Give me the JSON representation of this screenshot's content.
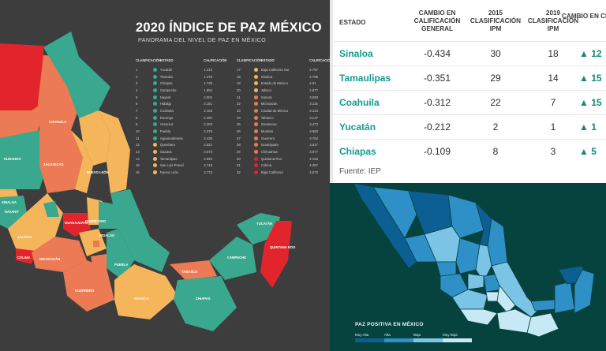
{
  "left": {
    "title": "2020 ÍNDICE DE PAZ MÉXICO",
    "subtitle": "PANORAMA DEL NIVEL DE PAZ EN MÉXICO",
    "table_headers": {
      "rank": "CLASIFICACIÓN",
      "state": "ESTADO",
      "score": "CALIFICACIÓN"
    },
    "colors": {
      "teal": "#3aa88e",
      "orange": "#ec7a54",
      "yellow": "#f5b55a",
      "red": "#e2252c"
    },
    "ranking_col1": [
      {
        "rank": "1",
        "state": "Yucatán",
        "score": "1.212",
        "color": "#3aa88e"
      },
      {
        "rank": "2",
        "state": "Tlaxcala",
        "score": "1.378",
        "color": "#3aa88e"
      },
      {
        "rank": "3",
        "state": "Chiapas",
        "score": "1.735",
        "color": "#3aa88e"
      },
      {
        "rank": "4",
        "state": "Campeche",
        "score": "1.854",
        "color": "#3aa88e"
      },
      {
        "rank": "5",
        "state": "Nayarit",
        "score": "2.001",
        "color": "#3aa88e"
      },
      {
        "rank": "6",
        "state": "Hidalgo",
        "score": "2.151",
        "color": "#3aa88e"
      },
      {
        "rank": "7",
        "state": "Coahuila",
        "score": "2.163",
        "color": "#3aa88e"
      },
      {
        "rank": "8",
        "state": "Durango",
        "score": "2.281",
        "color": "#3aa88e"
      },
      {
        "rank": "9",
        "state": "Veracruz",
        "score": "2.283",
        "color": "#3aa88e"
      },
      {
        "rank": "10",
        "state": "Puebla",
        "score": "2.376",
        "color": "#3aa88e"
      },
      {
        "rank": "11",
        "state": "Aguascalientes",
        "score": "2.436",
        "color": "#3aa88e"
      },
      {
        "rank": "12",
        "state": "Querétaro",
        "score": "2.521",
        "color": "#f5b55a"
      },
      {
        "rank": "13",
        "state": "Oaxaca",
        "score": "2.572",
        "color": "#f5b55a"
      },
      {
        "rank": "14",
        "state": "Tamaulipas",
        "score": "2.594",
        "color": "#f5b55a"
      },
      {
        "rank": "15",
        "state": "San Luis Potosí",
        "score": "2.718",
        "color": "#f5b55a"
      },
      {
        "rank": "16",
        "state": "Nuevo León",
        "score": "2.773",
        "color": "#f5b55a"
      }
    ],
    "ranking_col2": [
      {
        "rank": "17",
        "state": "Baja California Sur",
        "score": "2.797",
        "color": "#f5b55a"
      },
      {
        "rank": "18",
        "state": "Sinaloa",
        "score": "2.798",
        "color": "#f5b55a"
      },
      {
        "rank": "19",
        "state": "Estado de México",
        "score": "2.91",
        "color": "#f5b55a"
      },
      {
        "rank": "20",
        "state": "Jalisco",
        "score": "2.977",
        "color": "#f5b55a"
      },
      {
        "rank": "21",
        "state": "Sonora",
        "score": "3.093",
        "color": "#ec7a54"
      },
      {
        "rank": "22",
        "state": "Michoacán",
        "score": "3.116",
        "color": "#ec7a54"
      },
      {
        "rank": "23",
        "state": "Ciudad de México",
        "score": "3.124",
        "color": "#ec7a54"
      },
      {
        "rank": "24",
        "state": "Tabasco",
        "score": "3.137",
        "color": "#ec7a54"
      },
      {
        "rank": "25",
        "state": "Zacatecas",
        "score": "3.473",
        "color": "#ec7a54"
      },
      {
        "rank": "26",
        "state": "Morelos",
        "score": "3.583",
        "color": "#ec7a54"
      },
      {
        "rank": "27",
        "state": "Guerrero",
        "score": "3.762",
        "color": "#ec7a54"
      },
      {
        "rank": "28",
        "state": "Guanajuato",
        "score": "3.817",
        "color": "#ec7a54"
      },
      {
        "rank": "29",
        "state": "Chihuahua",
        "score": "3.877",
        "color": "#ec7a54"
      },
      {
        "rank": "30",
        "state": "Quintana Roo",
        "score": "4.165",
        "color": "#e2252c"
      },
      {
        "rank": "31",
        "state": "Colima",
        "score": "4.357",
        "color": "#e2252c"
      },
      {
        "rank": "32",
        "state": "Baja California",
        "score": "4.572",
        "color": "#e2252c"
      }
    ],
    "map_labels": {
      "coahuila": "COAHUILA",
      "nuevo_leon": "NUEVO LEÓN",
      "durango": "DURANGO",
      "zacatecas": "ZACATECAS",
      "sinaloa": "SINALOA",
      "nayarit": "NAYARIT",
      "jalisco": "JALISCO",
      "colima": "COLIMA",
      "michoacan": "MICHOACÁN",
      "guanajuato": "GUANAJUATO",
      "queretaro": "QUERÉTARO",
      "hidalgo": "HIDALGO",
      "puebla": "PUEBLA",
      "guerrero": "GUERRERO",
      "oaxaca": "OAXACA",
      "tabasco": "TABASCO",
      "chiapas": "CHIAPAS",
      "campeche": "CAMPECHE",
      "yucatan": "YUCATÁN",
      "quintana_roo": "QUINTANA ROO"
    }
  },
  "table": {
    "headers": {
      "estado": "ESTADO",
      "cambio": "CAMBIO EN CALIFICACIÓN GENERAL",
      "clasif2015": "2015 CLASIFICACIÓN IPM",
      "clasif2019": "2019 CLASIFICACIÓN IPM",
      "cambio_clasif": "CAMBIO EN CLASIFICACIÓN"
    },
    "rows": [
      {
        "estado": "Sinaloa",
        "cambio": "-0.434",
        "c2015": "30",
        "c2019": "18",
        "delta": "12"
      },
      {
        "estado": "Tamaulipas",
        "cambio": "-0.351",
        "c2015": "29",
        "c2019": "14",
        "delta": "15"
      },
      {
        "estado": "Coahuila",
        "cambio": "-0.312",
        "c2015": "22",
        "c2019": "7",
        "delta": "15"
      },
      {
        "estado": "Yucatán",
        "cambio": "-0.212",
        "c2015": "2",
        "c2019": "1",
        "delta": "1"
      },
      {
        "estado": "Chiapas",
        "cambio": "-0.109",
        "c2015": "8",
        "c2019": "3",
        "delta": "5"
      }
    ],
    "arrow_symbol": "🡅",
    "source": "Fuente: IEP"
  },
  "positive_map": {
    "legend_title": "PAZ POSITIVA EN MÉXICO",
    "legend": [
      {
        "label": "Muy Alta",
        "color": "#0c5f93"
      },
      {
        "label": "Alta",
        "color": "#2f8fc7"
      },
      {
        "label": "Baja",
        "color": "#7cc4e6"
      },
      {
        "label": "Muy Baja",
        "color": "#c7e8f5"
      }
    ]
  }
}
